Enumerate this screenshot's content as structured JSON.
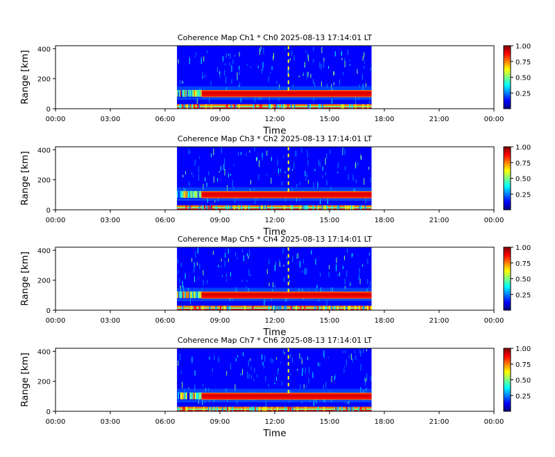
{
  "colors": {
    "background": "#ffffff",
    "colormap": [
      "#00007f",
      "#0000ff",
      "#007fff",
      "#00ffff",
      "#7fff7f",
      "#ffff00",
      "#ff7f00",
      "#ff0000",
      "#7f0000"
    ]
  },
  "chart_data": [
    {
      "type": "heatmap",
      "title": "Coherence Map Ch1 * Ch0 2025-08-13 17:14:01 LT",
      "xlabel": "Time",
      "ylabel": "Range [km]",
      "x_ticks": [
        "00:00",
        "03:00",
        "06:00",
        "09:00",
        "12:00",
        "15:00",
        "18:00",
        "21:00",
        "00:00"
      ],
      "y_ticks": [
        0,
        200,
        400
      ],
      "x_range_hours": [
        0,
        24
      ],
      "y_range_km": [
        0,
        420
      ],
      "data_time_span_hours": [
        6.65,
        17.3
      ],
      "colorbar": {
        "range": [
          0,
          1
        ],
        "ticks": [
          "0.25",
          "0.50",
          "0.75",
          "1.00"
        ]
      }
    },
    {
      "type": "heatmap",
      "title": "Coherence Map Ch3 * Ch2 2025-08-13 17:14:01 LT",
      "xlabel": "Time",
      "ylabel": "Range [km]",
      "x_ticks": [
        "00:00",
        "03:00",
        "06:00",
        "09:00",
        "12:00",
        "15:00",
        "18:00",
        "21:00",
        "00:00"
      ],
      "y_ticks": [
        0,
        200,
        400
      ],
      "x_range_hours": [
        0,
        24
      ],
      "y_range_km": [
        0,
        420
      ],
      "data_time_span_hours": [
        6.65,
        17.3
      ],
      "colorbar": {
        "range": [
          0,
          1
        ],
        "ticks": [
          "0.25",
          "0.50",
          "0.75",
          "1.00"
        ]
      }
    },
    {
      "type": "heatmap",
      "title": "Coherence Map Ch5 * Ch4 2025-08-13 17:14:01 LT",
      "xlabel": "Time",
      "ylabel": "Range [km]",
      "x_ticks": [
        "00:00",
        "03:00",
        "06:00",
        "09:00",
        "12:00",
        "15:00",
        "18:00",
        "21:00",
        "00:00"
      ],
      "y_ticks": [
        0,
        200,
        400
      ],
      "x_range_hours": [
        0,
        24
      ],
      "y_range_km": [
        0,
        420
      ],
      "data_time_span_hours": [
        6.65,
        17.3
      ],
      "colorbar": {
        "range": [
          0,
          1
        ],
        "ticks": [
          "0.25",
          "0.50",
          "0.75",
          "1.00"
        ]
      }
    },
    {
      "type": "heatmap",
      "title": "Coherence Map Ch7 * Ch6 2025-08-13 17:14:01 LT",
      "xlabel": "Time",
      "ylabel": "Range [km]",
      "x_ticks": [
        "00:00",
        "03:00",
        "06:00",
        "09:00",
        "12:00",
        "15:00",
        "18:00",
        "21:00",
        "00:00"
      ],
      "y_ticks": [
        0,
        200,
        400
      ],
      "x_range_hours": [
        0,
        24
      ],
      "y_range_km": [
        0,
        420
      ],
      "data_time_span_hours": [
        6.65,
        17.3
      ],
      "colorbar": {
        "range": [
          0,
          1
        ],
        "ticks": [
          "0.25",
          "0.50",
          "0.75",
          "1.00"
        ]
      }
    }
  ]
}
